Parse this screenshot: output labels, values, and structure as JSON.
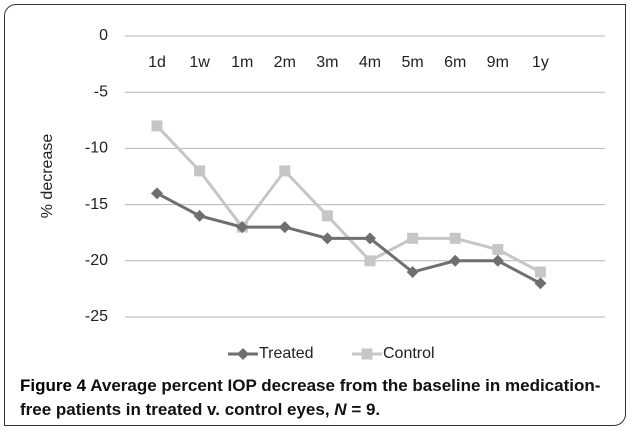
{
  "chart_data": {
    "type": "line",
    "y_label": "% decrease",
    "categories": [
      "1d",
      "1w",
      "1m",
      "2m",
      "3m",
      "4m",
      "5m",
      "6m",
      "9m",
      "1y"
    ],
    "series": [
      {
        "name": "Treated",
        "color": "#6f6f6f",
        "marker": "diamond",
        "values": [
          -14,
          -16,
          -17,
          -17,
          -18,
          -18,
          -21,
          -20,
          -20,
          -22
        ]
      },
      {
        "name": "Control",
        "color": "#c6c6c6",
        "marker": "square",
        "values": [
          -8,
          -12,
          -17,
          -12,
          -16,
          -20,
          -18,
          -18,
          -19,
          -21
        ]
      }
    ],
    "ylim": [
      -25,
      0
    ],
    "yticks": [
      0,
      -5,
      -10,
      -15,
      -20,
      -25
    ],
    "grid": true,
    "legend": "bottom"
  },
  "caption": {
    "label": "Figure 4",
    "text": "Average percent IOP decrease from the baseline in medication-free patients in treated v. control eyes,",
    "variable": "N",
    "suffix": "= 9."
  }
}
